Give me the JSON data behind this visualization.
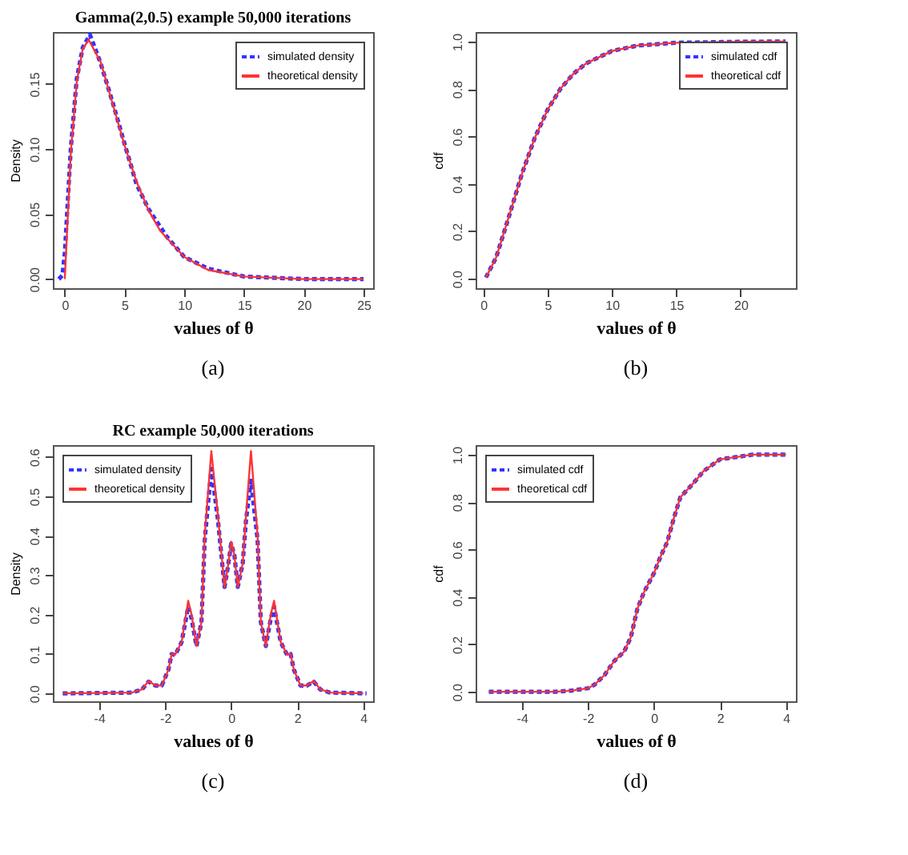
{
  "chart_data": [
    {
      "type": "line",
      "title": "Gamma(2,0.5) example 50,000 iterations",
      "xlabel": "values of θ",
      "ylabel": "Density",
      "annotations": [
        "(a)"
      ],
      "legend": "top right",
      "grid": false,
      "marker": "none",
      "xlim": [
        -1,
        25.8
      ],
      "ylim": [
        -0.007,
        0.19
      ],
      "xticks": [
        0,
        5,
        10,
        15,
        20,
        25
      ],
      "yticks": [
        {
          "value": 0,
          "label": "0.00"
        },
        {
          "value": 0.05,
          "label": "0.05"
        },
        {
          "value": 0.1,
          "label": "0.10"
        },
        {
          "value": 0.15,
          "label": "0.15"
        }
      ],
      "series": [
        {
          "name": "simulated density",
          "color": "#3333ff",
          "line_style": "dashed",
          "x": [
            -0.5,
            -0.2,
            0,
            0.5,
            1,
            1.5,
            2.1,
            3,
            4,
            5,
            6,
            7,
            8.5,
            10,
            12,
            15,
            20,
            25
          ],
          "values": [
            0,
            0.003,
            0.02,
            0.1,
            0.154,
            0.178,
            0.188,
            0.166,
            0.136,
            0.104,
            0.073,
            0.054,
            0.033,
            0.017,
            0.008,
            0.002,
            0,
            0
          ]
        },
        {
          "name": "theoretical density",
          "color": "#ff3333",
          "line_style": "solid",
          "x": [
            0,
            0.5,
            1,
            1.5,
            2,
            3,
            4,
            5,
            6,
            7,
            8,
            10,
            12,
            15,
            20,
            25
          ],
          "values": [
            0,
            0.097,
            0.152,
            0.177,
            0.184,
            0.167,
            0.135,
            0.103,
            0.075,
            0.053,
            0.037,
            0.017,
            0.007,
            0.002,
            0,
            0
          ]
        }
      ]
    },
    {
      "type": "line",
      "xlabel": "values of θ",
      "ylabel": "cdf",
      "annotations": [
        "(b)"
      ],
      "legend": "top right",
      "grid": false,
      "marker": "none",
      "xlim": [
        -0.6,
        24.3
      ],
      "ylim": [
        -0.04,
        1.04
      ],
      "xticks": [
        0,
        5,
        10,
        15,
        20
      ],
      "yticks": [
        {
          "value": 0,
          "label": "0.0"
        },
        {
          "value": 0.2,
          "label": "0.2"
        },
        {
          "value": 0.4,
          "label": "0.4"
        },
        {
          "value": 0.6,
          "label": "0.6"
        },
        {
          "value": 0.8,
          "label": "0.8"
        },
        {
          "value": 1,
          "label": "1.0"
        }
      ],
      "series": [
        {
          "name": "simulated cdf",
          "color": "#3333ff",
          "line_style": "dashed",
          "x": [
            0.2,
            1,
            2,
            3,
            4,
            5,
            6,
            7,
            8,
            10,
            12,
            15,
            20,
            23.5
          ],
          "values": [
            0.005,
            0.09,
            0.264,
            0.442,
            0.594,
            0.713,
            0.801,
            0.864,
            0.908,
            0.96,
            0.983,
            0.995,
            0.999,
            1.0
          ]
        },
        {
          "name": "theoretical cdf",
          "color": "#ff3333",
          "line_style": "solid",
          "x": [
            0.2,
            1,
            2,
            3,
            4,
            5,
            6,
            7,
            8,
            10,
            12,
            15,
            20,
            23.5
          ],
          "values": [
            0.005,
            0.09,
            0.264,
            0.442,
            0.594,
            0.713,
            0.801,
            0.864,
            0.908,
            0.96,
            0.983,
            0.995,
            0.999,
            1.0
          ]
        }
      ]
    },
    {
      "type": "line",
      "title": "RC example 50,000 iterations",
      "xlabel": "values of θ",
      "ylabel": "Density",
      "annotations": [
        "(c)"
      ],
      "legend": "top left",
      "grid": false,
      "marker": "none",
      "xlim": [
        -5.4,
        4.3
      ],
      "ylim": [
        -0.02,
        0.63
      ],
      "xticks": [
        -4,
        -2,
        0,
        2,
        4
      ],
      "yticks": [
        {
          "value": 0,
          "label": "0.0"
        },
        {
          "value": 0.1,
          "label": "0.1"
        },
        {
          "value": 0.2,
          "label": "0.2"
        },
        {
          "value": 0.3,
          "label": "0.3"
        },
        {
          "value": 0.4,
          "label": "0.4"
        },
        {
          "value": 0.5,
          "label": "0.5"
        },
        {
          "value": 0.6,
          "label": "0.6"
        }
      ],
      "series": [
        {
          "name": "simulated density",
          "color": "#3333ff",
          "line_style": "dashed",
          "x": [
            -5.1,
            -3,
            -2.7,
            -2.5,
            -2.3,
            -2.1,
            -1.9,
            -1.8,
            -1.7,
            -1.5,
            -1.3,
            -1.2,
            -1.05,
            -0.9,
            -0.8,
            -0.6,
            -0.4,
            -0.2,
            -0.1,
            0,
            0.1,
            0.2,
            0.35,
            0.45,
            0.6,
            0.8,
            0.9,
            1.05,
            1.2,
            1.3,
            1.5,
            1.7,
            1.8,
            1.9,
            2.1,
            2.3,
            2.5,
            2.7,
            3,
            4.1
          ],
          "values": [
            0,
            0.002,
            0.01,
            0.03,
            0.02,
            0.02,
            0.06,
            0.1,
            0.097,
            0.13,
            0.22,
            0.19,
            0.12,
            0.18,
            0.39,
            0.57,
            0.44,
            0.27,
            0.32,
            0.38,
            0.35,
            0.27,
            0.33,
            0.44,
            0.54,
            0.39,
            0.18,
            0.12,
            0.19,
            0.22,
            0.13,
            0.097,
            0.1,
            0.06,
            0.02,
            0.02,
            0.03,
            0.01,
            0.002,
            0
          ]
        },
        {
          "name": "theoretical density",
          "color": "#ff3333",
          "line_style": "solid",
          "x": [
            -5.1,
            -3,
            -2.7,
            -2.5,
            -2.3,
            -2.1,
            -1.9,
            -1.8,
            -1.7,
            -1.5,
            -1.3,
            -1.2,
            -1.05,
            -0.9,
            -0.8,
            -0.6,
            -0.4,
            -0.2,
            -0.1,
            0,
            0.1,
            0.2,
            0.35,
            0.45,
            0.6,
            0.8,
            0.9,
            1.05,
            1.2,
            1.3,
            1.5,
            1.7,
            1.8,
            1.9,
            2.1,
            2.3,
            2.5,
            2.7,
            3,
            4
          ],
          "values": [
            0,
            0.002,
            0.01,
            0.032,
            0.02,
            0.02,
            0.06,
            0.1,
            0.098,
            0.13,
            0.235,
            0.2,
            0.12,
            0.18,
            0.4,
            0.615,
            0.45,
            0.27,
            0.32,
            0.385,
            0.35,
            0.27,
            0.33,
            0.45,
            0.615,
            0.4,
            0.18,
            0.12,
            0.2,
            0.235,
            0.13,
            0.098,
            0.1,
            0.06,
            0.02,
            0.02,
            0.032,
            0.01,
            0.002,
            0
          ]
        }
      ]
    },
    {
      "type": "line",
      "xlabel": "values of θ",
      "ylabel": "cdf",
      "annotations": [
        "(d)"
      ],
      "legend": "top left",
      "grid": false,
      "marker": "none",
      "xlim": [
        -5.4,
        4.3
      ],
      "ylim": [
        -0.04,
        1.04
      ],
      "xticks": [
        -4,
        -2,
        0,
        2,
        4
      ],
      "yticks": [
        {
          "value": 0,
          "label": "0.0"
        },
        {
          "value": 0.2,
          "label": "0.2"
        },
        {
          "value": 0.4,
          "label": "0.4"
        },
        {
          "value": 0.6,
          "label": "0.6"
        },
        {
          "value": 0.8,
          "label": "0.8"
        },
        {
          "value": 1,
          "label": "1.0"
        }
      ],
      "series": [
        {
          "name": "simulated cdf",
          "color": "#3333ff",
          "line_style": "dashed",
          "x": [
            -5,
            -3,
            -2.5,
            -2,
            -1.8,
            -1.5,
            -1.2,
            -0.9,
            -0.7,
            -0.5,
            -0.3,
            0,
            0.2,
            0.4,
            0.6,
            0.8,
            1,
            1.2,
            1.5,
            1.8,
            2,
            2.5,
            3,
            4
          ],
          "values": [
            0,
            0,
            0.005,
            0.015,
            0.03,
            0.07,
            0.13,
            0.17,
            0.23,
            0.35,
            0.42,
            0.5,
            0.57,
            0.63,
            0.73,
            0.82,
            0.85,
            0.88,
            0.93,
            0.96,
            0.98,
            0.99,
            1.0,
            1.0
          ]
        },
        {
          "name": "theoretical cdf",
          "color": "#ff3333",
          "line_style": "solid",
          "x": [
            -5,
            -3,
            -2.5,
            -2,
            -1.8,
            -1.5,
            -1.2,
            -0.9,
            -0.7,
            -0.5,
            -0.3,
            0,
            0.2,
            0.4,
            0.6,
            0.8,
            1,
            1.2,
            1.5,
            1.8,
            2,
            2.5,
            3,
            4
          ],
          "values": [
            0,
            0,
            0.005,
            0.015,
            0.03,
            0.07,
            0.13,
            0.17,
            0.23,
            0.35,
            0.42,
            0.5,
            0.57,
            0.63,
            0.73,
            0.82,
            0.85,
            0.88,
            0.93,
            0.96,
            0.98,
            0.99,
            1.0,
            1.0
          ]
        }
      ]
    }
  ]
}
